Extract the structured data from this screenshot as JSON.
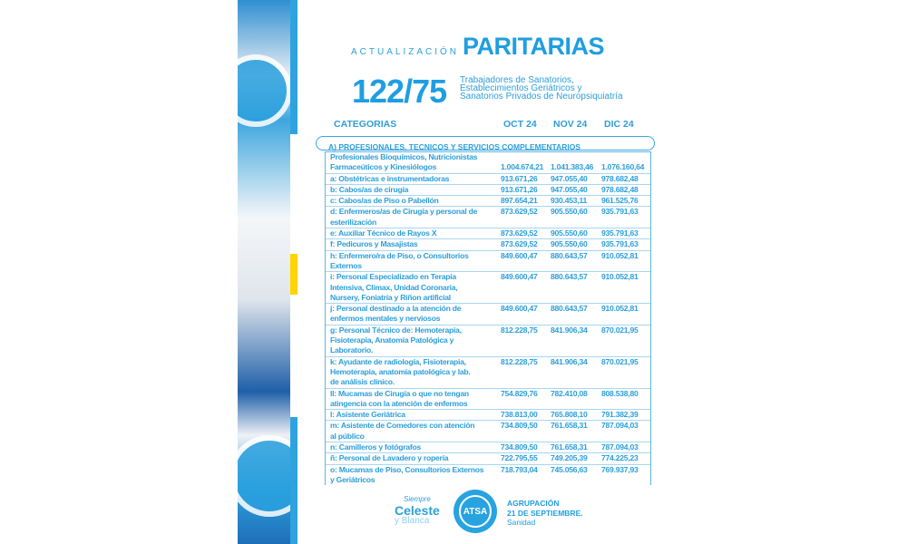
{
  "header": {
    "prefix": "ACTUALIZACIÓN",
    "title": "PARITARIAS",
    "agreement": "122/75",
    "subtitle": [
      "Trabajadores de Sanatorios,",
      "Establecimientos Geriátricos y",
      "Sanatorios Privados de Neuropsiquiatría"
    ]
  },
  "columns": {
    "category": "CATEGORIAS",
    "oct": "OCT 24",
    "nov": "NOV 24",
    "dic": "DIC 24"
  },
  "section": "A) PROFESIONALES, TECNICOS Y SERVICIOS COMPLEMENTARIOS",
  "rows": [
    {
      "label": [
        "Profesionales Bioquímicos,  Nutricionistas",
        "Farmaceúticos y Kinesiólogos"
      ],
      "values": [
        "1.004.674,21",
        "1.041.383,46",
        "1.076.160,64"
      ]
    },
    {
      "label": [
        "a: Obstétricas e instrumentadoras"
      ],
      "values": [
        "913.671,26",
        "947.055,40",
        "978.682,48"
      ]
    },
    {
      "label": [
        "b: Cabos/as de cirugía"
      ],
      "values": [
        "913.671,26",
        "947.055,40",
        "978.682,48"
      ]
    },
    {
      "label": [
        "c: Cabos/as de Piso o Pabellón"
      ],
      "values": [
        "897.654,21",
        "930.453,11",
        "961.525,76"
      ]
    },
    {
      "label": [
        "d: Enfermeros/as de Cirugía y personal de",
        "esterilización"
      ],
      "values": [
        "873.629,52",
        "905.550,60",
        "935.791,63"
      ]
    },
    {
      "label": [
        "e: Auxiliar Técnico de Rayos X"
      ],
      "values": [
        "873.629,52",
        "905.550,60",
        "935.791,63"
      ]
    },
    {
      "label": [
        "f: Pedicuros y Masajistas"
      ],
      "values": [
        "873.629,52",
        "905.550,60",
        "935.791,63"
      ]
    },
    {
      "label": [
        "h: Enfermero/ra de Piso, o Consultorios",
        "Externos"
      ],
      "values": [
        "849.600,47",
        "880.643,57",
        "910.052,81"
      ]
    },
    {
      "label": [
        "i: Personal Especializado en Terapia",
        "Intensiva, Climax, Unidad Coronaria,",
        "Nursery, Foniatría y Riñon artificial"
      ],
      "values": [
        "849.600,47",
        "880.643,57",
        "910.052,81"
      ]
    },
    {
      "label": [
        "j: Personal destinado a la atención de",
        "enfermos mentales y nerviosos"
      ],
      "values": [
        "849.600,47",
        "880.643,57",
        "910.052,81"
      ]
    },
    {
      "label": [
        "g: Personal Técnico de: Hemoterapia,",
        "Fisioterapia, Anatomía Patológica y",
        "Laboratorio."
      ],
      "values": [
        "812.228,75",
        "841.906,34",
        "870.021,95"
      ]
    },
    {
      "label": [
        "k: Ayudante de radiología, Fisioterapia,",
        "Hemoterapia, anatomía patológica y lab.",
        "de  análisis clínico."
      ],
      "values": [
        "812.228,75",
        "841.906,34",
        "870.021,95"
      ]
    },
    {
      "label": [
        "ll: Mucamas de Cirugía o que no tengan",
        "atingencia con la atención de enfermos"
      ],
      "values": [
        "754.829,76",
        "782.410,08",
        "808.538,80"
      ]
    },
    {
      "label": [
        "l: Asistente Geriátrica"
      ],
      "values": [
        "738.813,00",
        "765.808,10",
        "791.382,39"
      ]
    },
    {
      "label": [
        "m: Asistente de Comedores con atención",
        "al público"
      ],
      "values": [
        "734.809,50",
        "761.658,31",
        "787.094,03"
      ]
    },
    {
      "label": [
        "n: Camilleros y fotógrafos"
      ],
      "values": [
        "734.809,50",
        "761.658,31",
        "787.094,03"
      ]
    },
    {
      "label": [
        "ñ: Personal de Lavadero y ropería"
      ],
      "values": [
        "722.795,55",
        "749.205,39",
        "774.225,23"
      ]
    },
    {
      "label": [
        "o: Mucamas de Piso, Consultorios Externos",
        "y Geriátricos"
      ],
      "values": [
        "718.793,04",
        "745.056,63",
        "769.937,93"
      ]
    }
  ],
  "footer": {
    "slogan": [
      "Siempre",
      "Celeste",
      "y Blanca"
    ],
    "logo": "ATSA",
    "group": [
      "AGRUPACIÓN",
      "21 DE SEPTIEMBRE."
    ],
    "sector": "Sanidad"
  },
  "colors": {
    "accent": "#1f9ee0",
    "yellow": "#ffd400",
    "bar_blue": "#2fa3df"
  }
}
